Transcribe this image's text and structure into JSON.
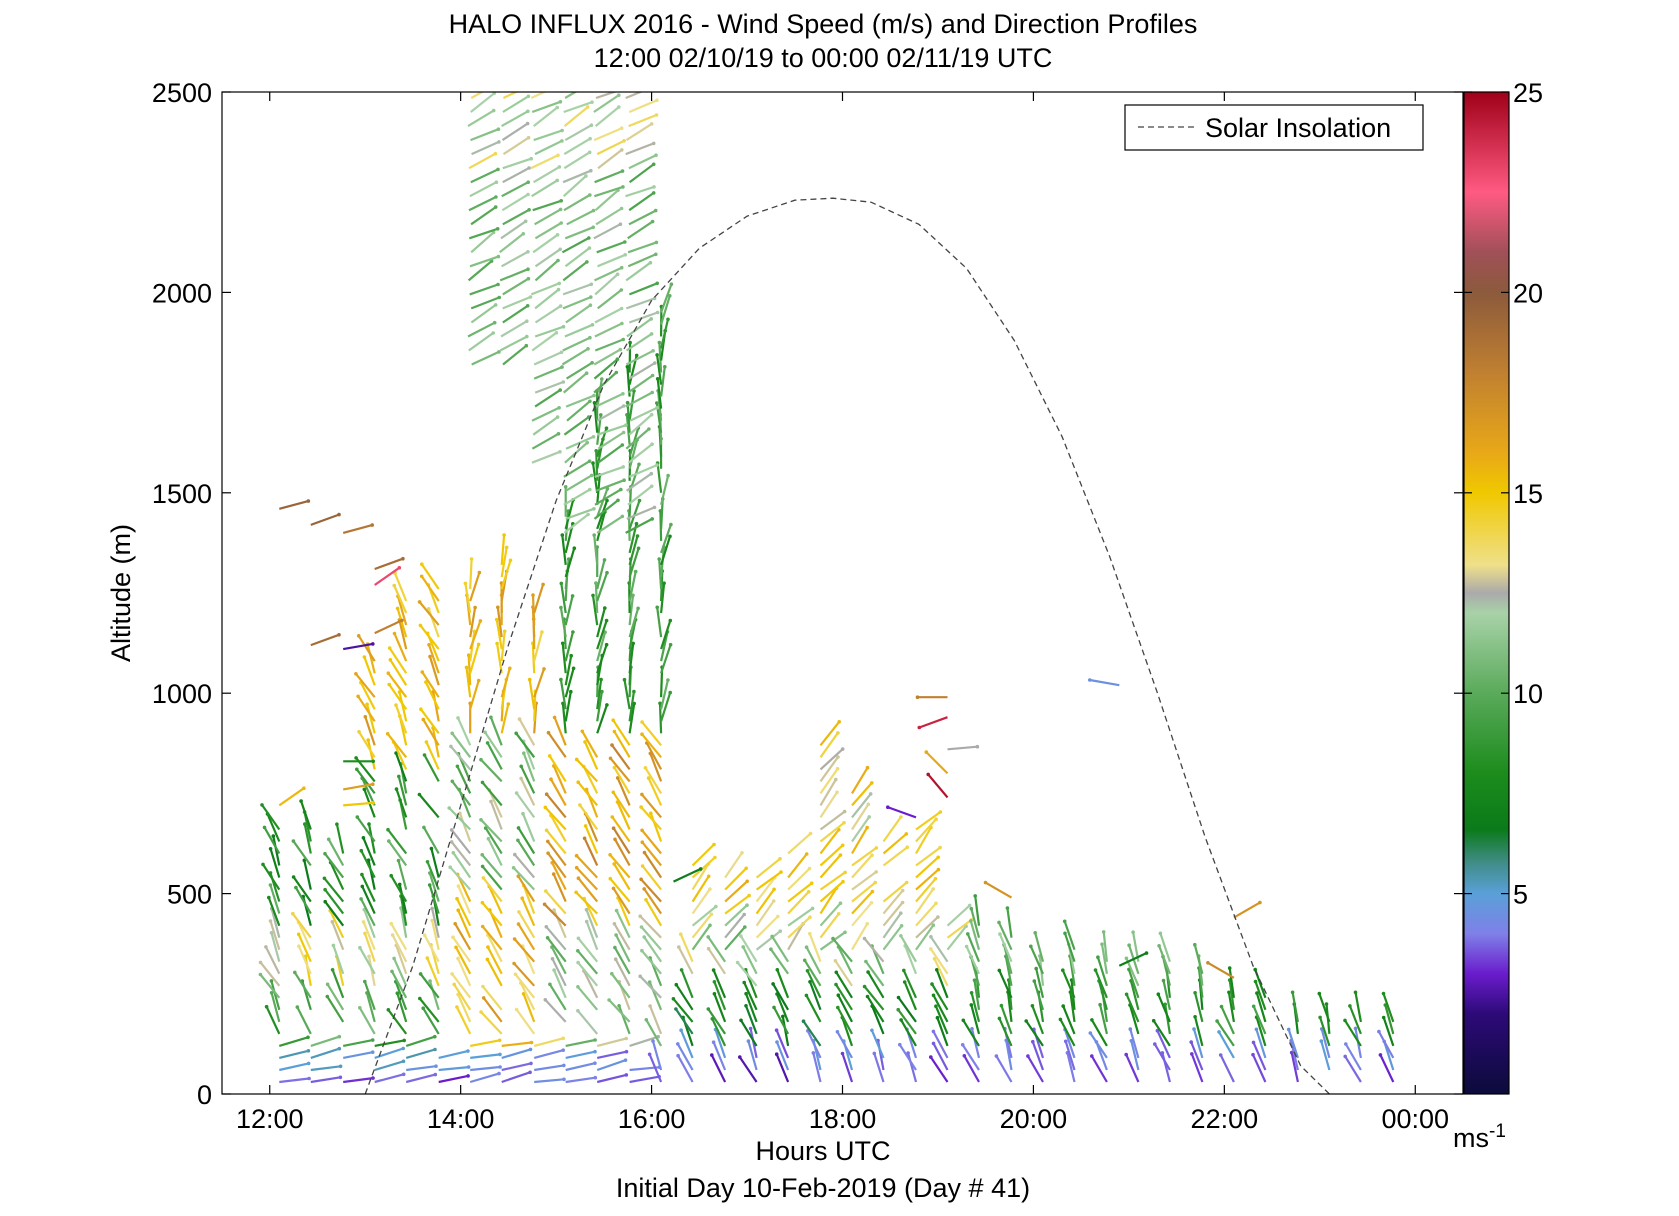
{
  "chart_data": {
    "type": "vector-field",
    "title": "HALO INFLUX 2016 - Wind Speed (m/s) and Direction Profiles",
    "subtitle": "12:00 02/10/19 to 00:00 02/11/19  UTC",
    "xlabel": "Hours UTC",
    "xlabel2": "Initial Day 10-Feb-2019 (Day # 41)",
    "ylabel": "Altitude (m)",
    "xlim": [
      11.5,
      24.5
    ],
    "ylim": [
      0,
      2500
    ],
    "xticks": [
      12,
      14,
      16,
      18,
      20,
      22,
      24
    ],
    "xtick_labels": [
      "12:00",
      "14:00",
      "16:00",
      "18:00",
      "20:00",
      "22:00",
      "00:00"
    ],
    "yticks": [
      0,
      500,
      1000,
      1500,
      2000,
      2500
    ],
    "ytick_labels": [
      "0",
      "500",
      "1000",
      "1500",
      "2000",
      "2500"
    ],
    "legend": {
      "position": "top-right",
      "entries": [
        "Solar Insolation"
      ]
    },
    "colorbar": {
      "min": 0,
      "max": 25,
      "ticks": [
        5,
        10,
        15,
        20,
        25
      ],
      "tick_labels": [
        "5",
        "10",
        "15",
        "20",
        "25"
      ],
      "unit_label": "ms",
      "unit_exponent": "-1",
      "stops": [
        [
          0,
          "#0b0b3a"
        ],
        [
          2,
          "#2d0a78"
        ],
        [
          3,
          "#6a1ccc"
        ],
        [
          4,
          "#7f80e8"
        ],
        [
          5,
          "#5aa0d8"
        ],
        [
          5.8,
          "#3f8c84"
        ],
        [
          6.6,
          "#0b7a1a"
        ],
        [
          8,
          "#1c8c1c"
        ],
        [
          10,
          "#5aaa5a"
        ],
        [
          12,
          "#a8d2a8"
        ],
        [
          12.5,
          "#aaaaaa"
        ],
        [
          13.2,
          "#efe08a"
        ],
        [
          15,
          "#f0c800"
        ],
        [
          16,
          "#e8a818"
        ],
        [
          18,
          "#c08030"
        ],
        [
          20,
          "#8c5a3c"
        ],
        [
          21,
          "#a05058"
        ],
        [
          22.5,
          "#ff5a82"
        ],
        [
          25,
          "#a00018"
        ]
      ]
    },
    "solar_insolation": {
      "x": [
        13.0,
        13.5,
        14.0,
        14.5,
        15.0,
        15.5,
        16.0,
        16.5,
        17.0,
        17.5,
        17.9,
        18.3,
        18.8,
        19.3,
        19.8,
        20.3,
        20.8,
        21.3,
        21.8,
        22.3,
        22.8,
        23.1
      ],
      "y": [
        0,
        320,
        720,
        1120,
        1480,
        1770,
        1980,
        2110,
        2190,
        2230,
        2235,
        2225,
        2170,
        2060,
        1880,
        1640,
        1340,
        1000,
        640,
        320,
        70,
        0
      ]
    },
    "wind_barbs": {
      "columns_x": [
        12.1,
        12.43,
        12.77,
        13.1,
        13.43,
        13.77,
        14.1,
        14.43,
        14.77,
        15.1,
        15.43,
        15.77,
        16.1,
        16.43,
        16.77,
        17.1,
        17.43,
        17.77,
        18.1,
        18.43,
        18.77,
        19.1,
        19.43,
        19.77,
        20.1,
        20.43,
        20.77,
        21.1,
        21.43,
        21.77,
        22.1,
        22.43,
        22.77,
        23.1,
        23.43,
        23.77
      ],
      "columns_top": [
        660,
        660,
        620,
        1080,
        1230,
        1280,
        1270,
        1330,
        1200,
        1480,
        1730,
        1800,
        1950,
        580,
        560,
        560,
        600,
        880,
        760,
        640,
        660,
        420,
        420,
        400,
        330,
        370,
        340,
        340,
        340,
        310,
        290,
        260,
        200,
        200,
        200,
        200
      ],
      "altitude_step": 30,
      "upper_jet": {
        "x_range": [
          14.1,
          16.0
        ],
        "y_range": [
          1400,
          2500
        ],
        "speed": 9.5,
        "direction_deg": 30
      },
      "isolated": [
        {
          "x": 12.1,
          "y": 1460,
          "speed": 19.5,
          "direction_deg": 15
        },
        {
          "x": 12.43,
          "y": 1420,
          "speed": 19.5,
          "direction_deg": 20
        },
        {
          "x": 12.77,
          "y": 1400,
          "speed": 18.5,
          "direction_deg": 15
        },
        {
          "x": 13.1,
          "y": 1310,
          "speed": 19,
          "direction_deg": 20
        },
        {
          "x": 13.1,
          "y": 1270,
          "speed": 23,
          "direction_deg": 35
        },
        {
          "x": 12.43,
          "y": 1120,
          "speed": 19,
          "direction_deg": 20
        },
        {
          "x": 12.77,
          "y": 1110,
          "speed": 2.5,
          "direction_deg": 10
        },
        {
          "x": 13.1,
          "y": 1150,
          "speed": 18,
          "direction_deg": 25
        },
        {
          "x": 12.77,
          "y": 830,
          "speed": 8,
          "direction_deg": 0
        },
        {
          "x": 12.77,
          "y": 760,
          "speed": 16.5,
          "direction_deg": 10
        },
        {
          "x": 12.77,
          "y": 720,
          "speed": 15,
          "direction_deg": 5
        },
        {
          "x": 12.1,
          "y": 720,
          "speed": 15.5,
          "direction_deg": 35
        },
        {
          "x": 18.77,
          "y": 690,
          "speed": 3,
          "direction_deg": 160
        },
        {
          "x": 19.1,
          "y": 860,
          "speed": 12.5,
          "direction_deg": 5
        },
        {
          "x": 19.1,
          "y": 800,
          "speed": 16,
          "direction_deg": 135
        },
        {
          "x": 19.1,
          "y": 940,
          "speed": 24,
          "direction_deg": 200
        },
        {
          "x": 19.1,
          "y": 990,
          "speed": 18,
          "direction_deg": 180
        },
        {
          "x": 19.1,
          "y": 740,
          "speed": 24.5,
          "direction_deg": 130
        },
        {
          "x": 20.9,
          "y": 1020,
          "speed": 4.5,
          "direction_deg": 170
        },
        {
          "x": 16.23,
          "y": 530,
          "speed": 7,
          "direction_deg": 25
        },
        {
          "x": 19.77,
          "y": 490,
          "speed": 17,
          "direction_deg": 150
        },
        {
          "x": 22.1,
          "y": 440,
          "speed": 17,
          "direction_deg": 30
        },
        {
          "x": 22.1,
          "y": 290,
          "speed": 17.5,
          "direction_deg": 150
        },
        {
          "x": 20.9,
          "y": 320,
          "speed": 7,
          "direction_deg": 25
        }
      ]
    }
  }
}
